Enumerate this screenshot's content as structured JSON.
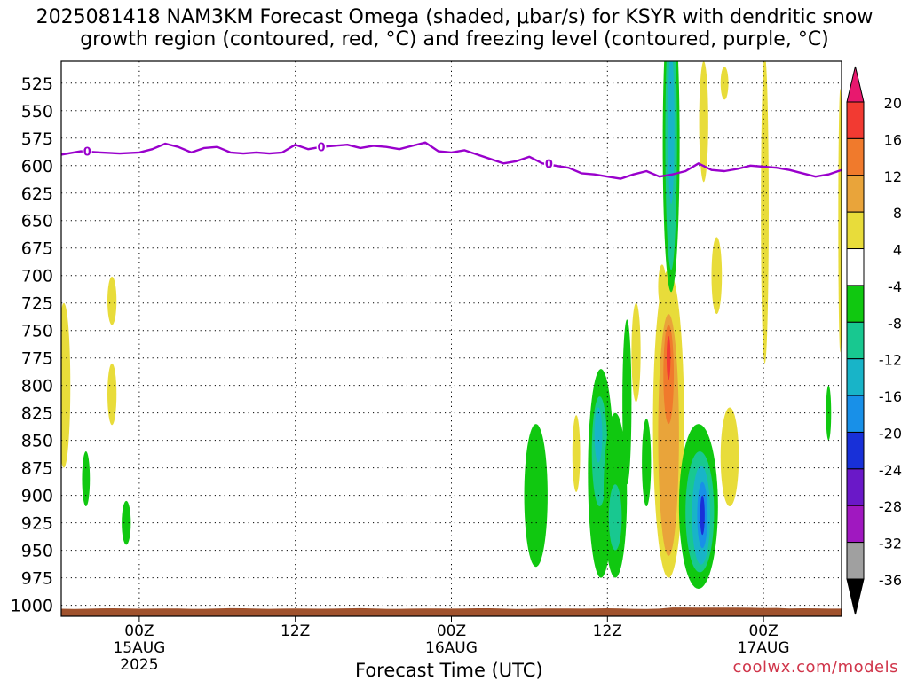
{
  "title": {
    "line1": "2025081418 NAM3KM Forecast Omega (shaded, μbar/s) for KSYR with dendritic snow",
    "line2": "growth region (contoured, red, °C) and freezing level (contoured, purple, °C)"
  },
  "credit": "coolwx.com/models",
  "chart_data": {
    "type": "heatmap",
    "title": "2025081418 NAM3KM Forecast Omega (shaded, μbar/s) for KSYR with dendritic snow growth region (contoured, red, °C) and freezing level (contoured, purple, °C)",
    "xlabel": "Forecast Time (UTC)",
    "ylabel": "",
    "x_unit": "hours since 2025-08-14 18Z",
    "xlim": [
      0,
      60
    ],
    "x_ticks": [
      {
        "x": 6,
        "label": "00Z",
        "sub": "15AUG",
        "sub2": "2025"
      },
      {
        "x": 18,
        "label": "12Z",
        "sub": "",
        "sub2": ""
      },
      {
        "x": 30,
        "label": "00Z",
        "sub": "16AUG",
        "sub2": ""
      },
      {
        "x": 42,
        "label": "12Z",
        "sub": "",
        "sub2": ""
      },
      {
        "x": 54,
        "label": "00Z",
        "sub": "17AUG",
        "sub2": ""
      }
    ],
    "y_unit": "hPa",
    "ylim": [
      1010,
      505
    ],
    "y_ticks": [
      525,
      550,
      575,
      600,
      625,
      650,
      675,
      700,
      725,
      750,
      775,
      800,
      825,
      850,
      875,
      900,
      925,
      950,
      975,
      1000
    ],
    "grid": true,
    "colorbar": {
      "labels": [
        "20",
        "16",
        "12",
        "8",
        "4",
        "-4",
        "-8",
        "-12",
        "-16",
        "-20",
        "-24",
        "-28",
        "-32",
        "-36"
      ],
      "colors": [
        "#e8186e",
        "#f23a32",
        "#f07a2c",
        "#e9a43a",
        "#e8dc3a",
        "#ffffff",
        "#10c810",
        "#18c890",
        "#18b4c8",
        "#1890e8",
        "#1830d8",
        "#6a18c8",
        "#a018c0",
        "#a0a0a0",
        "#000000"
      ]
    },
    "freezing_level": {
      "label": "0",
      "x": [
        0,
        1.5,
        3,
        4.5,
        6,
        7,
        8,
        9,
        10,
        11,
        12,
        13,
        14,
        15,
        16,
        17,
        18,
        19,
        20,
        21,
        22,
        23,
        24,
        25,
        26,
        27,
        28,
        29,
        30,
        31,
        32,
        33,
        34,
        35,
        36,
        37,
        38,
        39,
        40,
        41,
        42,
        43,
        44,
        45,
        46,
        47,
        48,
        49,
        50,
        51,
        52,
        53,
        54,
        55,
        56,
        57,
        58,
        59,
        60
      ],
      "y": [
        590,
        587,
        588,
        589,
        588,
        585,
        580,
        583,
        588,
        584,
        583,
        588,
        589,
        588,
        589,
        588,
        581,
        585,
        583,
        582,
        581,
        584,
        582,
        583,
        585,
        582,
        579,
        587,
        588,
        586,
        590,
        594,
        598,
        596,
        592,
        598,
        600,
        602,
        607,
        608,
        610,
        612,
        608,
        605,
        610,
        608,
        605,
        598,
        604,
        605,
        603,
        600,
        601,
        602,
        604,
        607,
        610,
        608,
        604
      ]
    },
    "omega_areas": [
      {
        "value": 4,
        "x": 0.2,
        "p": 800,
        "dx": 0.5,
        "dp": 75
      },
      {
        "value": 4,
        "x": 3.9,
        "p": 723,
        "dx": 0.35,
        "dp": 22
      },
      {
        "value": 4,
        "x": 3.9,
        "p": 808,
        "dx": 0.35,
        "dp": 28
      },
      {
        "value": -4,
        "x": 1.9,
        "p": 885,
        "dx": 0.3,
        "dp": 25
      },
      {
        "value": -4,
        "x": 5.0,
        "p": 925,
        "dx": 0.35,
        "dp": 20
      },
      {
        "value": -4,
        "x": 36.5,
        "p": 900,
        "dx": 0.9,
        "dp": 65
      },
      {
        "value": 4,
        "x": 39.6,
        "p": 862,
        "dx": 0.3,
        "dp": 35
      },
      {
        "value": -4,
        "x": 41.5,
        "p": 880,
        "dx": 1.0,
        "dp": 95
      },
      {
        "value": -8,
        "x": 41.4,
        "p": 860,
        "dx": 0.6,
        "dp": 50
      },
      {
        "value": -12,
        "x": 41.3,
        "p": 845,
        "dx": 0.3,
        "dp": 25
      },
      {
        "value": -4,
        "x": 42.6,
        "p": 900,
        "dx": 0.9,
        "dp": 75
      },
      {
        "value": -8,
        "x": 42.6,
        "p": 920,
        "dx": 0.5,
        "dp": 30
      },
      {
        "value": -4,
        "x": 43.5,
        "p": 815,
        "dx": 0.35,
        "dp": 75
      },
      {
        "value": 4,
        "x": 44.2,
        "p": 770,
        "dx": 0.35,
        "dp": 45
      },
      {
        "value": -4,
        "x": 45.0,
        "p": 870,
        "dx": 0.35,
        "dp": 40
      },
      {
        "value": 4,
        "x": 46.2,
        "p": 710,
        "dx": 0.3,
        "dp": 20
      },
      {
        "value": 4,
        "x": 46.7,
        "p": 835,
        "dx": 1.2,
        "dp": 140
      },
      {
        "value": 8,
        "x": 46.7,
        "p": 845,
        "dx": 0.8,
        "dp": 110
      },
      {
        "value": 12,
        "x": 46.7,
        "p": 790,
        "dx": 0.4,
        "dp": 45
      },
      {
        "value": 16,
        "x": 46.7,
        "p": 775,
        "dx": 0.15,
        "dp": 20
      },
      {
        "value": -4,
        "x": 49.0,
        "p": 910,
        "dx": 1.5,
        "dp": 75
      },
      {
        "value": -8,
        "x": 49.1,
        "p": 915,
        "dx": 1.1,
        "dp": 55
      },
      {
        "value": -12,
        "x": 49.2,
        "p": 918,
        "dx": 0.7,
        "dp": 45
      },
      {
        "value": -16,
        "x": 49.3,
        "p": 918,
        "dx": 0.4,
        "dp": 30
      },
      {
        "value": -20,
        "x": 49.3,
        "p": 918,
        "dx": 0.18,
        "dp": 18
      },
      {
        "value": -4,
        "x": 46.9,
        "p": 580,
        "dx": 0.65,
        "dp": 135
      },
      {
        "value": -8,
        "x": 46.9,
        "p": 575,
        "dx": 0.45,
        "dp": 120
      },
      {
        "value": -12,
        "x": 46.9,
        "p": 565,
        "dx": 0.25,
        "dp": 70
      },
      {
        "value": 4,
        "x": 49.4,
        "p": 560,
        "dx": 0.35,
        "dp": 55
      },
      {
        "value": 4,
        "x": 51.0,
        "p": 525,
        "dx": 0.3,
        "dp": 15
      },
      {
        "value": 4,
        "x": 50.4,
        "p": 700,
        "dx": 0.4,
        "dp": 35
      },
      {
        "value": 4,
        "x": 51.4,
        "p": 865,
        "dx": 0.7,
        "dp": 45
      },
      {
        "value": 4,
        "x": 54.1,
        "p": 640,
        "dx": 0.3,
        "dp": 140
      },
      {
        "value": -4,
        "x": 59.0,
        "p": 825,
        "dx": 0.2,
        "dp": 25
      },
      {
        "value": 4,
        "x": 59.9,
        "p": 650,
        "dx": 0.15,
        "dp": 120
      }
    ],
    "terrain_pressure": 1003
  },
  "colors": {
    "freezing_level": "#9900cc",
    "terrain": "#a0522d",
    "credit": "#d0354a"
  }
}
